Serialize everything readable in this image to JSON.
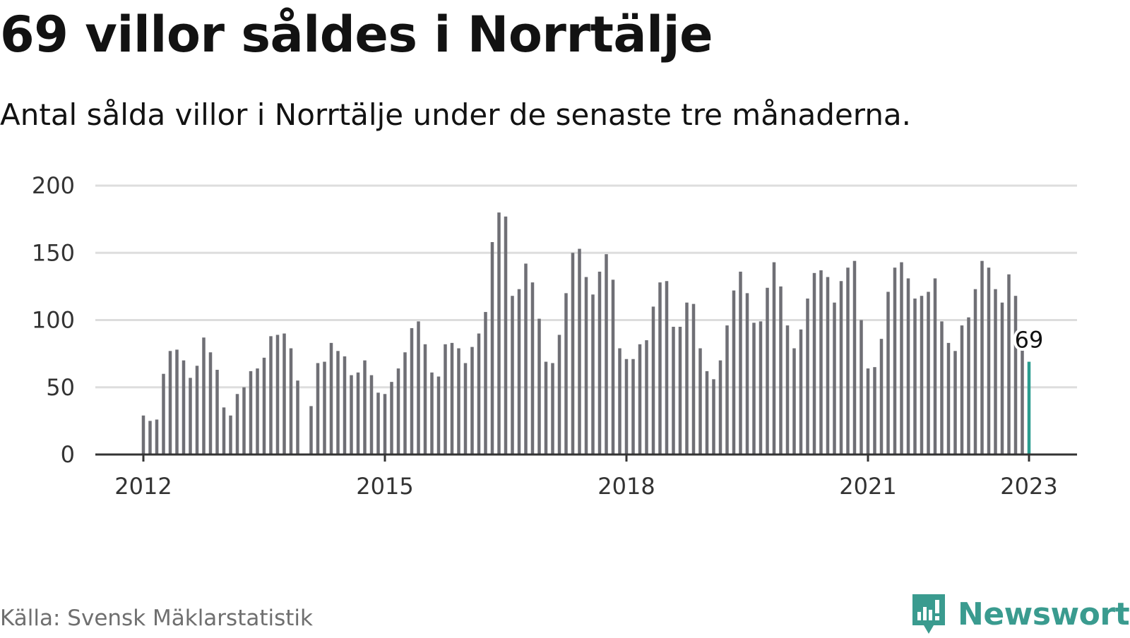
{
  "title": "69 villor såldes i Norrtälje",
  "subtitle": "Antal sålda villor i Norrtälje under de senaste tre månaderna.",
  "source": "Källa: Svensk Mäklarstatistik",
  "brand": {
    "name": "Newsworthy",
    "icon": "newsworthy-logo-icon",
    "color": "#3a9b8f"
  },
  "colors": {
    "bar": "#6f6f75",
    "highlight": "#2a9d8f",
    "grid": "#dddddd",
    "axis": "#333333"
  },
  "chart_data": {
    "type": "bar",
    "title": "69 villor såldes i Norrtälje",
    "subtitle": "Antal sålda villor i Norrtälje under de senaste tre månaderna.",
    "xlabel": "",
    "ylabel": "",
    "ylim": [
      0,
      200
    ],
    "yticks": [
      0,
      50,
      100,
      150,
      200
    ],
    "xticks": [
      "2012",
      "2015",
      "2018",
      "2021",
      "2023"
    ],
    "grid": true,
    "start_month": "2012-01",
    "end_month": "2023-01",
    "highlight_label": "69",
    "values": [
      29,
      25,
      26,
      60,
      77,
      78,
      70,
      57,
      66,
      87,
      76,
      63,
      35,
      29,
      45,
      50,
      62,
      64,
      72,
      88,
      89,
      90,
      79,
      55,
      null,
      36,
      68,
      69,
      83,
      77,
      73,
      59,
      61,
      70,
      59,
      46,
      45,
      54,
      64,
      76,
      94,
      99,
      82,
      61,
      58,
      82,
      83,
      79,
      68,
      80,
      90,
      106,
      158,
      180,
      177,
      118,
      123,
      142,
      128,
      101,
      69,
      68,
      89,
      120,
      150,
      153,
      132,
      119,
      136,
      149,
      130,
      79,
      71,
      71,
      82,
      85,
      110,
      128,
      129,
      95,
      95,
      113,
      112,
      79,
      62,
      56,
      70,
      96,
      122,
      136,
      120,
      98,
      99,
      124,
      143,
      125,
      96,
      79,
      93,
      116,
      135,
      137,
      132,
      113,
      129,
      139,
      144,
      100,
      64,
      65,
      86,
      121,
      139,
      143,
      131,
      116,
      118,
      121,
      131,
      99,
      83,
      77,
      96,
      102,
      123,
      144,
      139,
      123,
      113,
      134,
      118,
      78,
      69
    ]
  }
}
